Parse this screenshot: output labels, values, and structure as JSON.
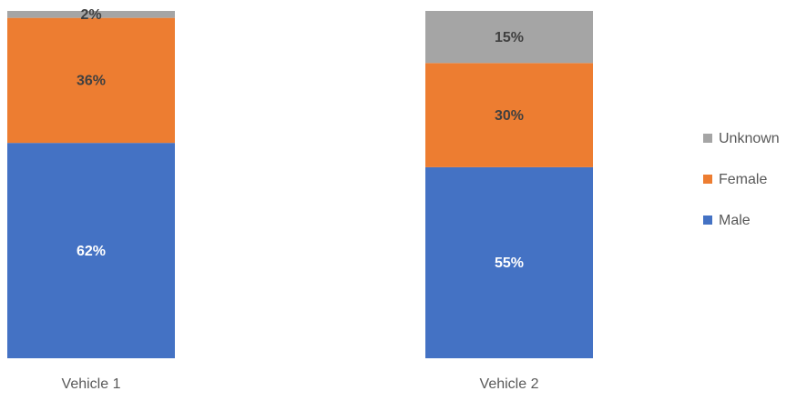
{
  "chart_data": {
    "type": "stacked_bar",
    "categories": [
      "Vehicle 1",
      "Vehicle 2"
    ],
    "series": [
      {
        "name": "Male",
        "color": "#4472c4",
        "label_color": "#ffffff",
        "values": [
          62,
          55
        ],
        "value_labels": [
          "62%",
          "55%"
        ]
      },
      {
        "name": "Female",
        "color": "#ed7d31",
        "label_color": "#404040",
        "values": [
          36,
          30
        ],
        "value_labels": [
          "36%",
          "30%"
        ]
      },
      {
        "name": "Unknown",
        "color": "#a5a5a5",
        "label_color": "#404040",
        "values": [
          2,
          15
        ],
        "value_labels": [
          "2%",
          "15%"
        ]
      }
    ],
    "ylim": [
      0,
      100
    ],
    "legend": "right"
  }
}
